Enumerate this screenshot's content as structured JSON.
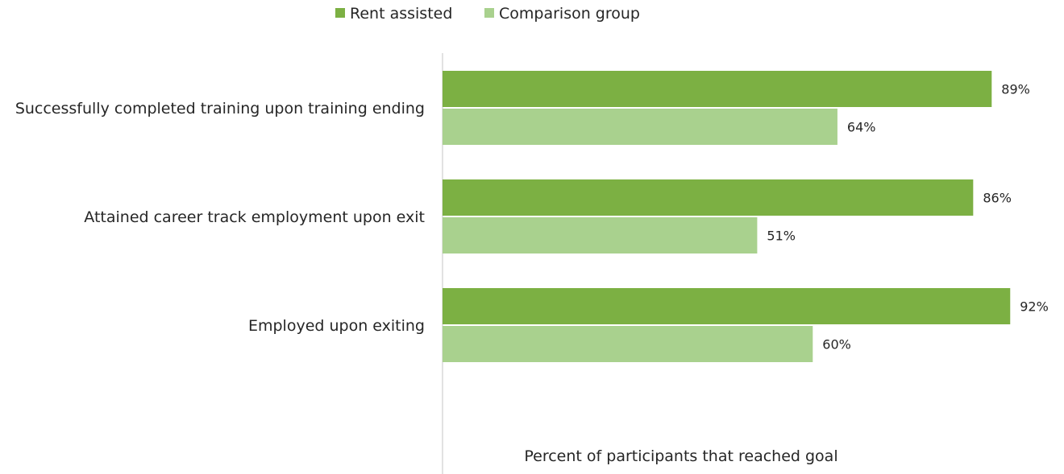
{
  "chart_data": {
    "type": "bar",
    "orientation": "horizontal",
    "categories": [
      "Successfully completed training upon training ending",
      "Attained career track employment upon exit",
      "Employed upon exiting"
    ],
    "series": [
      {
        "name": "Rent assisted",
        "values": [
          89,
          86,
          92
        ],
        "color": "#7cb043"
      },
      {
        "name": "Comparison group",
        "values": [
          64,
          51,
          60
        ],
        "color": "#a9d18e"
      }
    ],
    "value_suffix": "%",
    "xlabel": "Percent of participants that reached goal",
    "ylabel": "",
    "xlim": [
      0,
      100
    ],
    "grid": false,
    "legend": "top-center"
  }
}
